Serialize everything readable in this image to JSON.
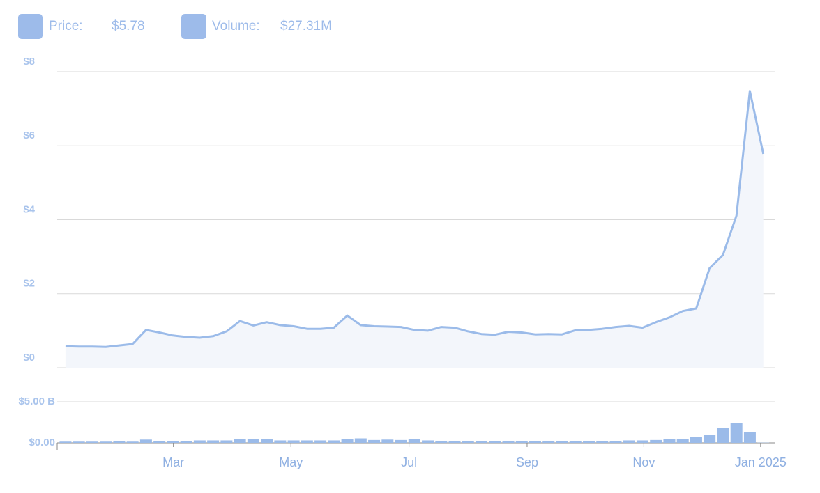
{
  "chart_data": {
    "type": "price-volume",
    "readout": [
      {
        "name": "Price:",
        "value": 5.78,
        "label": "$5.78"
      },
      {
        "name": "Volume:",
        "value": 0.02731,
        "label": "$27.31M"
      }
    ],
    "color": "#9bbbe9",
    "area_color": "#f3f6fb",
    "series": [
      {
        "name": "Price",
        "values": [
          0.58,
          0.57,
          0.57,
          0.56,
          0.6,
          0.64,
          1.02,
          0.95,
          0.87,
          0.83,
          0.81,
          0.85,
          0.98,
          1.26,
          1.14,
          1.23,
          1.15,
          1.12,
          1.05,
          1.05,
          1.08,
          1.41,
          1.15,
          1.12,
          1.11,
          1.1,
          1.02,
          1.0,
          1.1,
          1.08,
          0.98,
          0.91,
          0.89,
          0.97,
          0.95,
          0.9,
          0.91,
          0.9,
          1.01,
          1.02,
          1.05,
          1.1,
          1.13,
          1.08,
          1.23,
          1.36,
          1.53,
          1.6,
          2.69,
          3.05,
          4.11,
          7.48,
          5.78
        ]
      },
      {
        "name": "Volume",
        "axis": "y2",
        "values": [
          0.15,
          0.15,
          0.15,
          0.15,
          0.18,
          0.15,
          0.4,
          0.2,
          0.22,
          0.25,
          0.3,
          0.3,
          0.3,
          0.5,
          0.5,
          0.5,
          0.3,
          0.3,
          0.3,
          0.3,
          0.3,
          0.45,
          0.55,
          0.35,
          0.4,
          0.35,
          0.45,
          0.3,
          0.25,
          0.25,
          0.2,
          0.2,
          0.2,
          0.18,
          0.18,
          0.18,
          0.18,
          0.18,
          0.18,
          0.2,
          0.22,
          0.25,
          0.3,
          0.3,
          0.35,
          0.5,
          0.5,
          0.7,
          1.0,
          1.8,
          2.4,
          1.35,
          0.027
        ]
      }
    ],
    "xlim": [
      -0.62,
      52.9
    ],
    "xticks": [
      {
        "value": 8.04,
        "label": "Mar"
      },
      {
        "value": 16.8,
        "label": "May"
      },
      {
        "value": 25.6,
        "label": "Jul"
      },
      {
        "value": 34.4,
        "label": "Sep"
      },
      {
        "value": 43.1,
        "label": "Nov"
      },
      {
        "value": 51.8,
        "label": "Jan 2025"
      }
    ],
    "ylim": [
      0,
      8
    ],
    "yticks": [
      {
        "value": 0,
        "label": "$0"
      },
      {
        "value": 2,
        "label": "$2"
      },
      {
        "value": 4,
        "label": "$4"
      },
      {
        "value": 6,
        "label": "$6"
      },
      {
        "value": 8,
        "label": "$8"
      }
    ],
    "y2lim": [
      0,
      5
    ],
    "y2ticks": [
      {
        "value": 0,
        "label": "$0.00"
      },
      {
        "value": 5,
        "label": "$5.00 B"
      }
    ],
    "grid": true
  }
}
